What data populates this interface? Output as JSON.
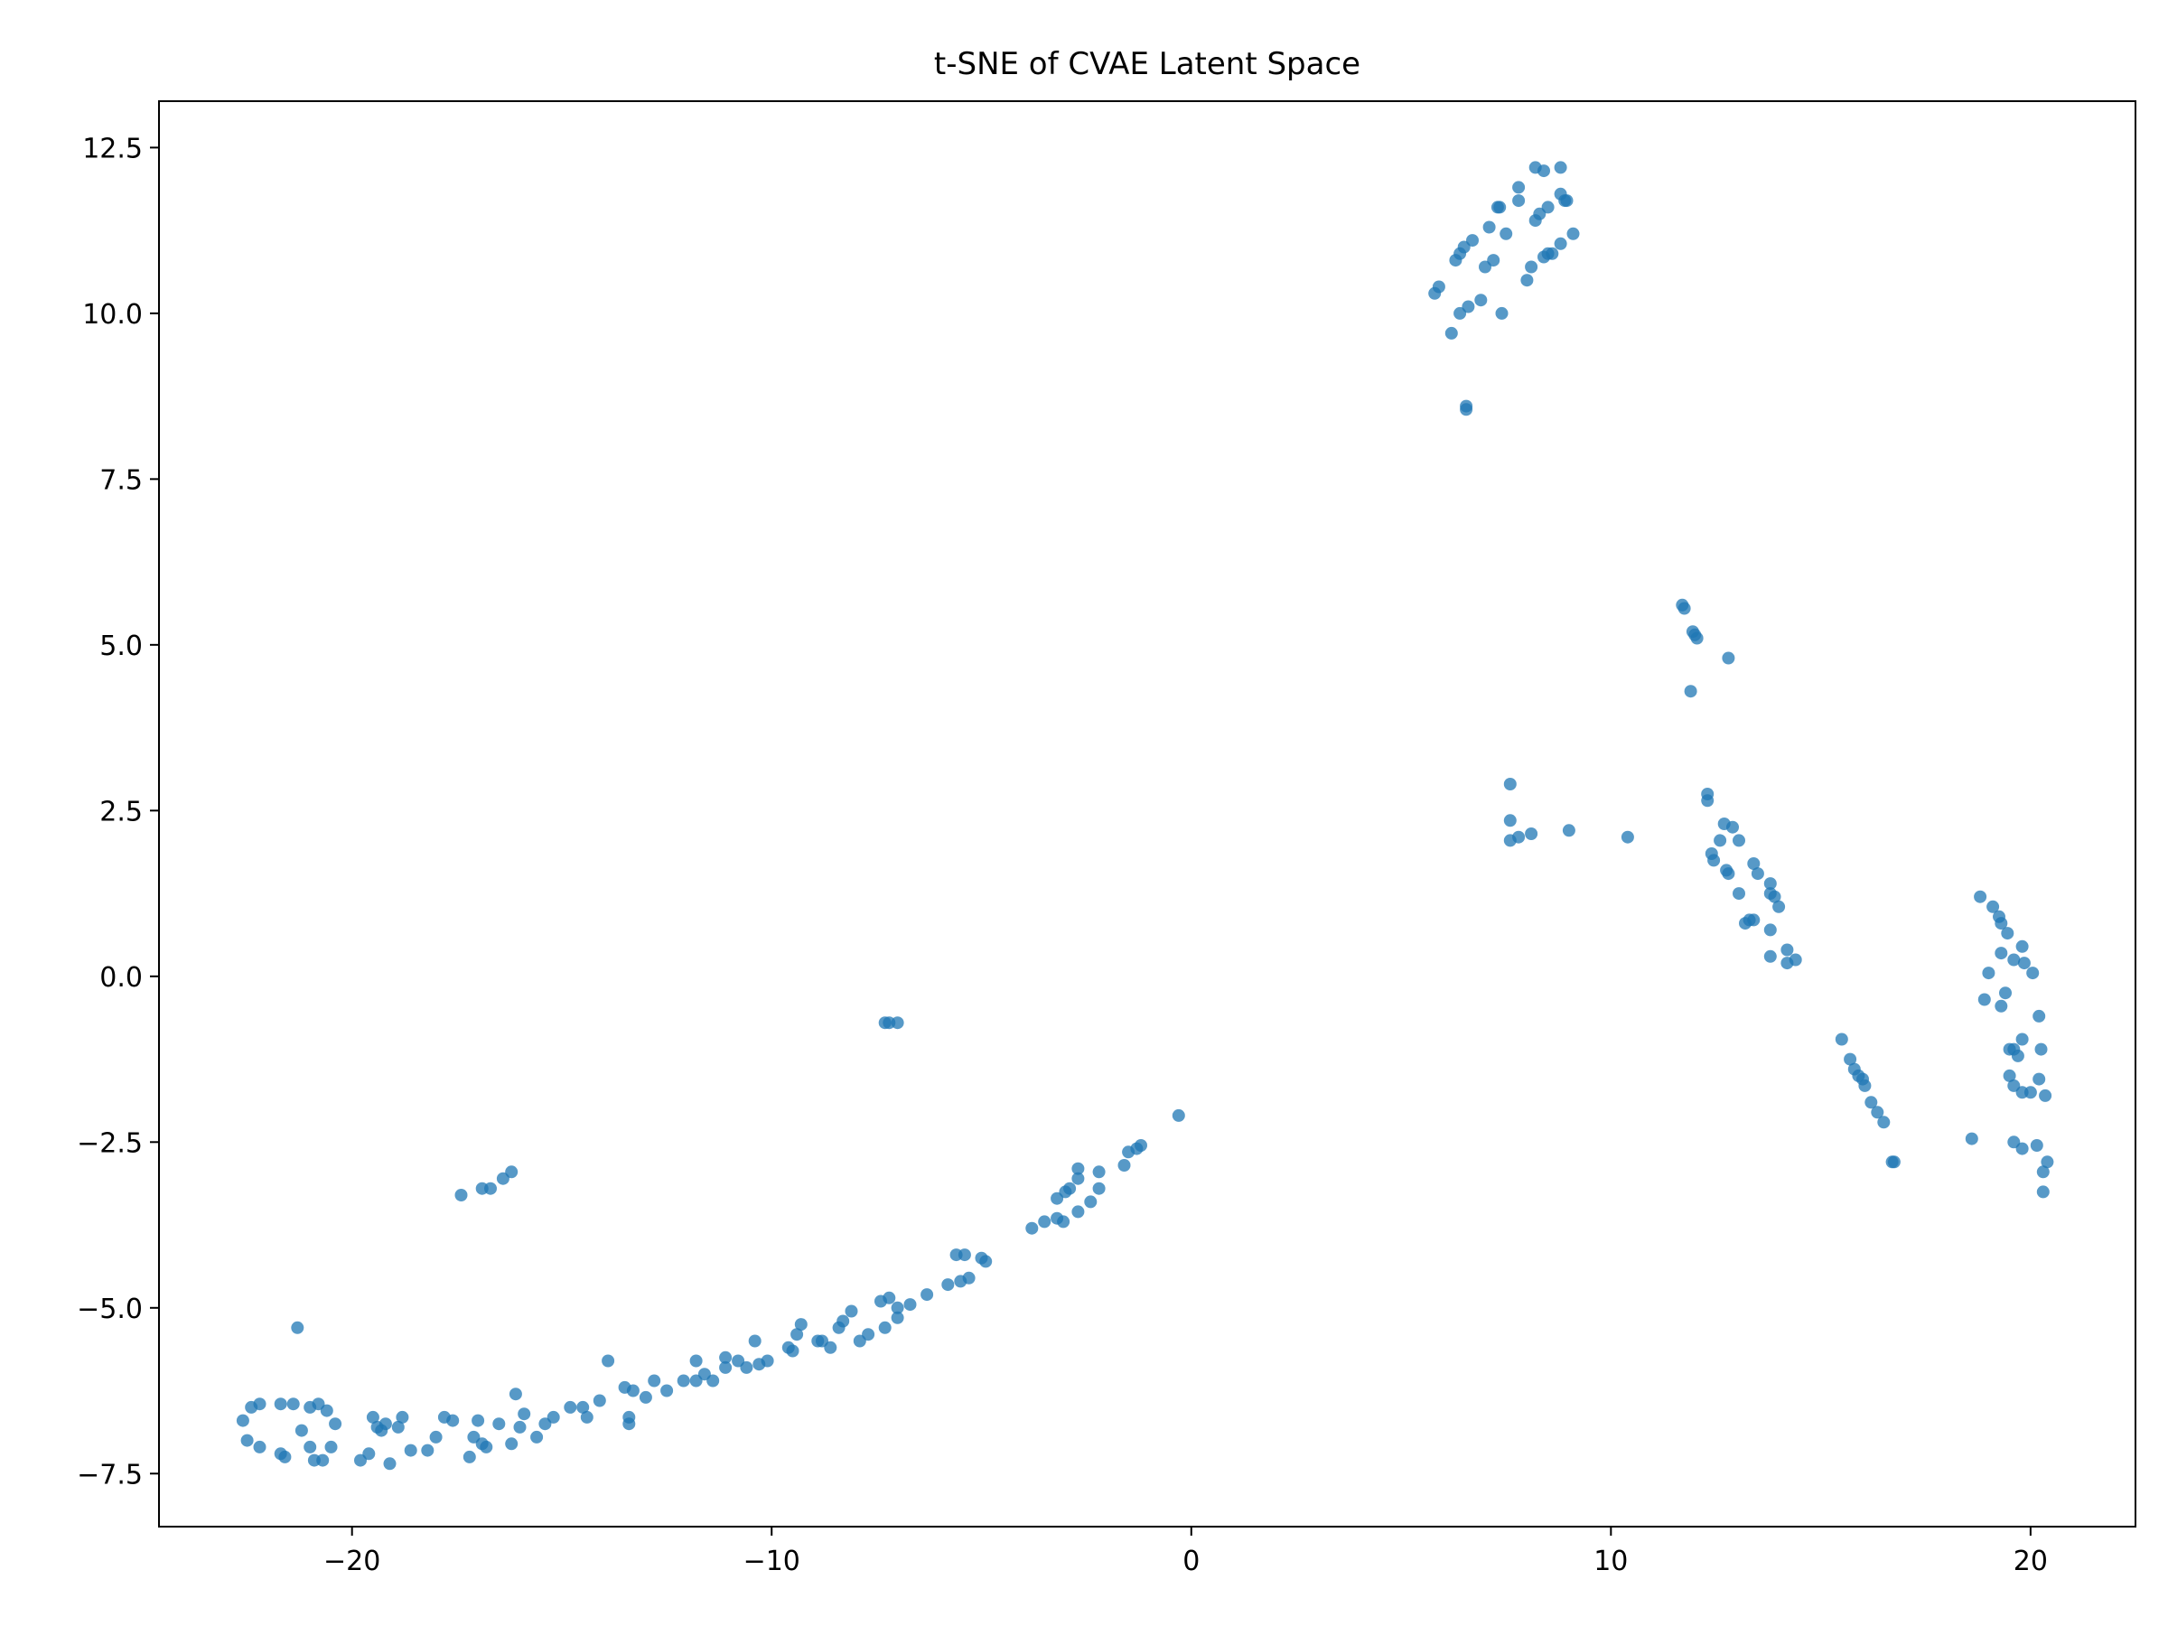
{
  "chart_data": {
    "type": "scatter",
    "title": "t-SNE of CVAE Latent Space",
    "xlabel": "",
    "ylabel": "",
    "xlim": [
      -24.6,
      22.5
    ],
    "ylim": [
      -8.3,
      13.2
    ],
    "xticks": [
      -20,
      -10,
      0,
      10,
      20
    ],
    "xtick_labels": [
      "−20",
      "−10",
      "0",
      "10",
      "20"
    ],
    "yticks": [
      -7.5,
      -5.0,
      -2.5,
      0.0,
      2.5,
      5.0,
      7.5,
      10.0,
      12.5
    ],
    "ytick_labels": [
      "−7.5",
      "−5.0",
      "−2.5",
      "0.0",
      "2.5",
      "5.0",
      "7.5",
      "10.0",
      "12.5"
    ],
    "grid": false,
    "legend": "none",
    "marker_color": "#1f77b4",
    "series": [
      {
        "points": [
          [
            -22.6,
            -6.7
          ],
          [
            -22.5,
            -7.0
          ],
          [
            -22.4,
            -6.5
          ],
          [
            -22.2,
            -6.45
          ],
          [
            -22.2,
            -7.1
          ],
          [
            -21.7,
            -6.45
          ],
          [
            -21.7,
            -7.2
          ],
          [
            -21.6,
            -7.25
          ],
          [
            -21.4,
            -6.45
          ],
          [
            -21.3,
            -5.3
          ],
          [
            -21.2,
            -6.85
          ],
          [
            -21.0,
            -6.5
          ],
          [
            -21.0,
            -7.1
          ],
          [
            -20.9,
            -7.3
          ],
          [
            -20.8,
            -6.45
          ],
          [
            -20.7,
            -7.3
          ],
          [
            -20.6,
            -6.55
          ],
          [
            -20.5,
            -7.1
          ],
          [
            -20.4,
            -6.75
          ],
          [
            -19.8,
            -7.3
          ],
          [
            -19.6,
            -7.2
          ],
          [
            -19.5,
            -6.65
          ],
          [
            -19.4,
            -6.8
          ],
          [
            -19.3,
            -6.85
          ],
          [
            -19.2,
            -6.75
          ],
          [
            -19.1,
            -7.35
          ],
          [
            -18.9,
            -6.8
          ],
          [
            -18.8,
            -6.65
          ],
          [
            -18.6,
            -7.15
          ],
          [
            -18.2,
            -7.15
          ],
          [
            -18.0,
            -6.95
          ],
          [
            -17.8,
            -6.65
          ],
          [
            -17.6,
            -6.7
          ],
          [
            -17.4,
            -3.3
          ],
          [
            -17.2,
            -7.25
          ],
          [
            -17.1,
            -6.95
          ],
          [
            -17.0,
            -6.7
          ],
          [
            -16.9,
            -7.05
          ],
          [
            -16.9,
            -3.2
          ],
          [
            -16.8,
            -7.1
          ],
          [
            -16.7,
            -3.2
          ],
          [
            -16.5,
            -6.75
          ],
          [
            -16.4,
            -3.05
          ],
          [
            -16.2,
            -7.05
          ],
          [
            -16.2,
            -2.95
          ],
          [
            -16.1,
            -6.3
          ],
          [
            -16.0,
            -6.8
          ],
          [
            -15.9,
            -6.6
          ],
          [
            -15.6,
            -6.95
          ],
          [
            -15.4,
            -6.75
          ],
          [
            -15.2,
            -6.65
          ],
          [
            -14.8,
            -6.5
          ],
          [
            -14.5,
            -6.5
          ],
          [
            -14.4,
            -6.65
          ],
          [
            -14.1,
            -6.4
          ],
          [
            -13.9,
            -5.8
          ],
          [
            -13.5,
            -6.2
          ],
          [
            -13.4,
            -6.65
          ],
          [
            -13.4,
            -6.75
          ],
          [
            -13.3,
            -6.25
          ],
          [
            -13.0,
            -6.35
          ],
          [
            -12.8,
            -6.1
          ],
          [
            -12.5,
            -6.25
          ],
          [
            -12.1,
            -6.1
          ],
          [
            -11.8,
            -5.8
          ],
          [
            -11.8,
            -6.1
          ],
          [
            -11.6,
            -6.0
          ],
          [
            -11.4,
            -6.1
          ],
          [
            -11.1,
            -5.9
          ],
          [
            -11.1,
            -5.75
          ],
          [
            -10.8,
            -5.8
          ],
          [
            -10.6,
            -5.9
          ],
          [
            -10.4,
            -5.5
          ],
          [
            -10.3,
            -5.85
          ],
          [
            -10.1,
            -5.8
          ],
          [
            -9.6,
            -5.6
          ],
          [
            -9.5,
            -5.65
          ],
          [
            -9.4,
            -5.4
          ],
          [
            -9.3,
            -5.25
          ],
          [
            -8.9,
            -5.5
          ],
          [
            -8.8,
            -5.5
          ],
          [
            -8.6,
            -5.6
          ],
          [
            -8.4,
            -5.3
          ],
          [
            -8.3,
            -5.2
          ],
          [
            -8.1,
            -5.05
          ],
          [
            -7.9,
            -5.5
          ],
          [
            -7.7,
            -5.4
          ],
          [
            -7.4,
            -4.9
          ],
          [
            -7.3,
            -5.3
          ],
          [
            -7.3,
            -0.7
          ],
          [
            -7.2,
            -0.7
          ],
          [
            -7.2,
            -4.85
          ],
          [
            -7.0,
            -5.15
          ],
          [
            -7.0,
            -0.7
          ],
          [
            -7.0,
            -5.0
          ],
          [
            -6.7,
            -4.95
          ],
          [
            -6.3,
            -4.8
          ],
          [
            -5.8,
            -4.65
          ],
          [
            -5.6,
            -4.2
          ],
          [
            -5.5,
            -4.6
          ],
          [
            -5.4,
            -4.2
          ],
          [
            -5.3,
            -4.55
          ],
          [
            -5.0,
            -4.25
          ],
          [
            -4.9,
            -4.3
          ],
          [
            -3.8,
            -3.8
          ],
          [
            -3.5,
            -3.7
          ],
          [
            -3.2,
            -3.35
          ],
          [
            -3.2,
            -3.65
          ],
          [
            -3.05,
            -3.7
          ],
          [
            -3.0,
            -3.25
          ],
          [
            -2.9,
            -3.2
          ],
          [
            -2.7,
            -2.9
          ],
          [
            -2.7,
            -3.05
          ],
          [
            -2.7,
            -3.55
          ],
          [
            -2.4,
            -3.4
          ],
          [
            -2.2,
            -2.95
          ],
          [
            -2.2,
            -3.2
          ],
          [
            -1.6,
            -2.85
          ],
          [
            -1.5,
            -2.65
          ],
          [
            -1.3,
            -2.6
          ],
          [
            -1.2,
            -2.55
          ],
          [
            -0.3,
            -2.1
          ],
          [
            5.8,
            10.3
          ],
          [
            5.9,
            10.4
          ],
          [
            6.2,
            9.7
          ],
          [
            6.3,
            10.8
          ],
          [
            6.4,
            10.0
          ],
          [
            6.4,
            10.9
          ],
          [
            6.5,
            11.0
          ],
          [
            6.55,
            8.6
          ],
          [
            6.55,
            8.55
          ],
          [
            6.6,
            10.1
          ],
          [
            6.7,
            11.1
          ],
          [
            6.9,
            10.2
          ],
          [
            7.0,
            10.7
          ],
          [
            7.1,
            11.3
          ],
          [
            7.2,
            10.8
          ],
          [
            7.3,
            11.6
          ],
          [
            7.35,
            11.6
          ],
          [
            7.4,
            10.0
          ],
          [
            7.5,
            11.2
          ],
          [
            7.8,
            11.7
          ],
          [
            7.8,
            11.9
          ],
          [
            8.0,
            10.5
          ],
          [
            8.1,
            10.7
          ],
          [
            8.2,
            11.4
          ],
          [
            8.2,
            12.2
          ],
          [
            8.3,
            11.5
          ],
          [
            8.4,
            12.15
          ],
          [
            8.4,
            10.85
          ],
          [
            8.5,
            11.6
          ],
          [
            8.5,
            10.9
          ],
          [
            8.6,
            10.9
          ],
          [
            8.8,
            11.8
          ],
          [
            8.8,
            12.2
          ],
          [
            8.8,
            11.05
          ],
          [
            8.9,
            11.7
          ],
          [
            8.95,
            11.7
          ],
          [
            9.1,
            11.2
          ],
          [
            7.6,
            2.9
          ],
          [
            7.6,
            2.35
          ],
          [
            7.6,
            2.05
          ],
          [
            7.8,
            2.1
          ],
          [
            8.1,
            2.15
          ],
          [
            9.0,
            2.2
          ],
          [
            10.4,
            2.1
          ],
          [
            11.7,
            5.6
          ],
          [
            11.75,
            5.55
          ],
          [
            11.9,
            4.3
          ],
          [
            11.95,
            5.2
          ],
          [
            12.0,
            5.15
          ],
          [
            12.05,
            5.1
          ],
          [
            12.3,
            2.75
          ],
          [
            12.3,
            2.65
          ],
          [
            12.4,
            1.85
          ],
          [
            12.45,
            1.75
          ],
          [
            12.6,
            2.05
          ],
          [
            12.7,
            2.3
          ],
          [
            12.75,
            1.6
          ],
          [
            12.8,
            1.55
          ],
          [
            12.8,
            4.8
          ],
          [
            12.9,
            2.25
          ],
          [
            13.05,
            1.25
          ],
          [
            13.05,
            2.05
          ],
          [
            13.2,
            0.8
          ],
          [
            13.3,
            0.85
          ],
          [
            13.4,
            0.85
          ],
          [
            13.4,
            1.7
          ],
          [
            13.5,
            1.55
          ],
          [
            13.8,
            1.4
          ],
          [
            13.8,
            1.25
          ],
          [
            13.8,
            0.7
          ],
          [
            13.8,
            0.3
          ],
          [
            13.9,
            1.2
          ],
          [
            14.0,
            1.05
          ],
          [
            14.2,
            0.4
          ],
          [
            14.2,
            0.2
          ],
          [
            14.4,
            0.25
          ],
          [
            15.5,
            -0.95
          ],
          [
            15.7,
            -1.25
          ],
          [
            15.8,
            -1.4
          ],
          [
            15.9,
            -1.5
          ],
          [
            16.0,
            -1.55
          ],
          [
            16.05,
            -1.65
          ],
          [
            16.2,
            -1.9
          ],
          [
            16.35,
            -2.05
          ],
          [
            16.5,
            -2.2
          ],
          [
            16.7,
            -2.8
          ],
          [
            16.75,
            -2.8
          ],
          [
            18.6,
            -2.45
          ],
          [
            18.8,
            1.2
          ],
          [
            18.9,
            -0.35
          ],
          [
            19.0,
            0.05
          ],
          [
            19.1,
            1.05
          ],
          [
            19.25,
            0.9
          ],
          [
            19.3,
            -0.45
          ],
          [
            19.3,
            0.8
          ],
          [
            19.3,
            0.35
          ],
          [
            19.4,
            -0.25
          ],
          [
            19.45,
            0.65
          ],
          [
            19.5,
            -1.1
          ],
          [
            19.5,
            -1.5
          ],
          [
            19.6,
            -1.65
          ],
          [
            19.6,
            -2.5
          ],
          [
            19.6,
            0.25
          ],
          [
            19.6,
            -1.1
          ],
          [
            19.7,
            -1.2
          ],
          [
            19.8,
            -1.75
          ],
          [
            19.8,
            -0.95
          ],
          [
            19.8,
            -2.6
          ],
          [
            19.8,
            0.45
          ],
          [
            19.85,
            0.2
          ],
          [
            20.0,
            -1.75
          ],
          [
            20.05,
            0.05
          ],
          [
            20.15,
            -2.55
          ],
          [
            20.2,
            -0.6
          ],
          [
            20.2,
            -1.55
          ],
          [
            20.25,
            -1.1
          ],
          [
            20.3,
            -3.25
          ],
          [
            20.3,
            -2.95
          ],
          [
            20.35,
            -1.8
          ],
          [
            20.4,
            -2.8
          ]
        ]
      }
    ]
  }
}
